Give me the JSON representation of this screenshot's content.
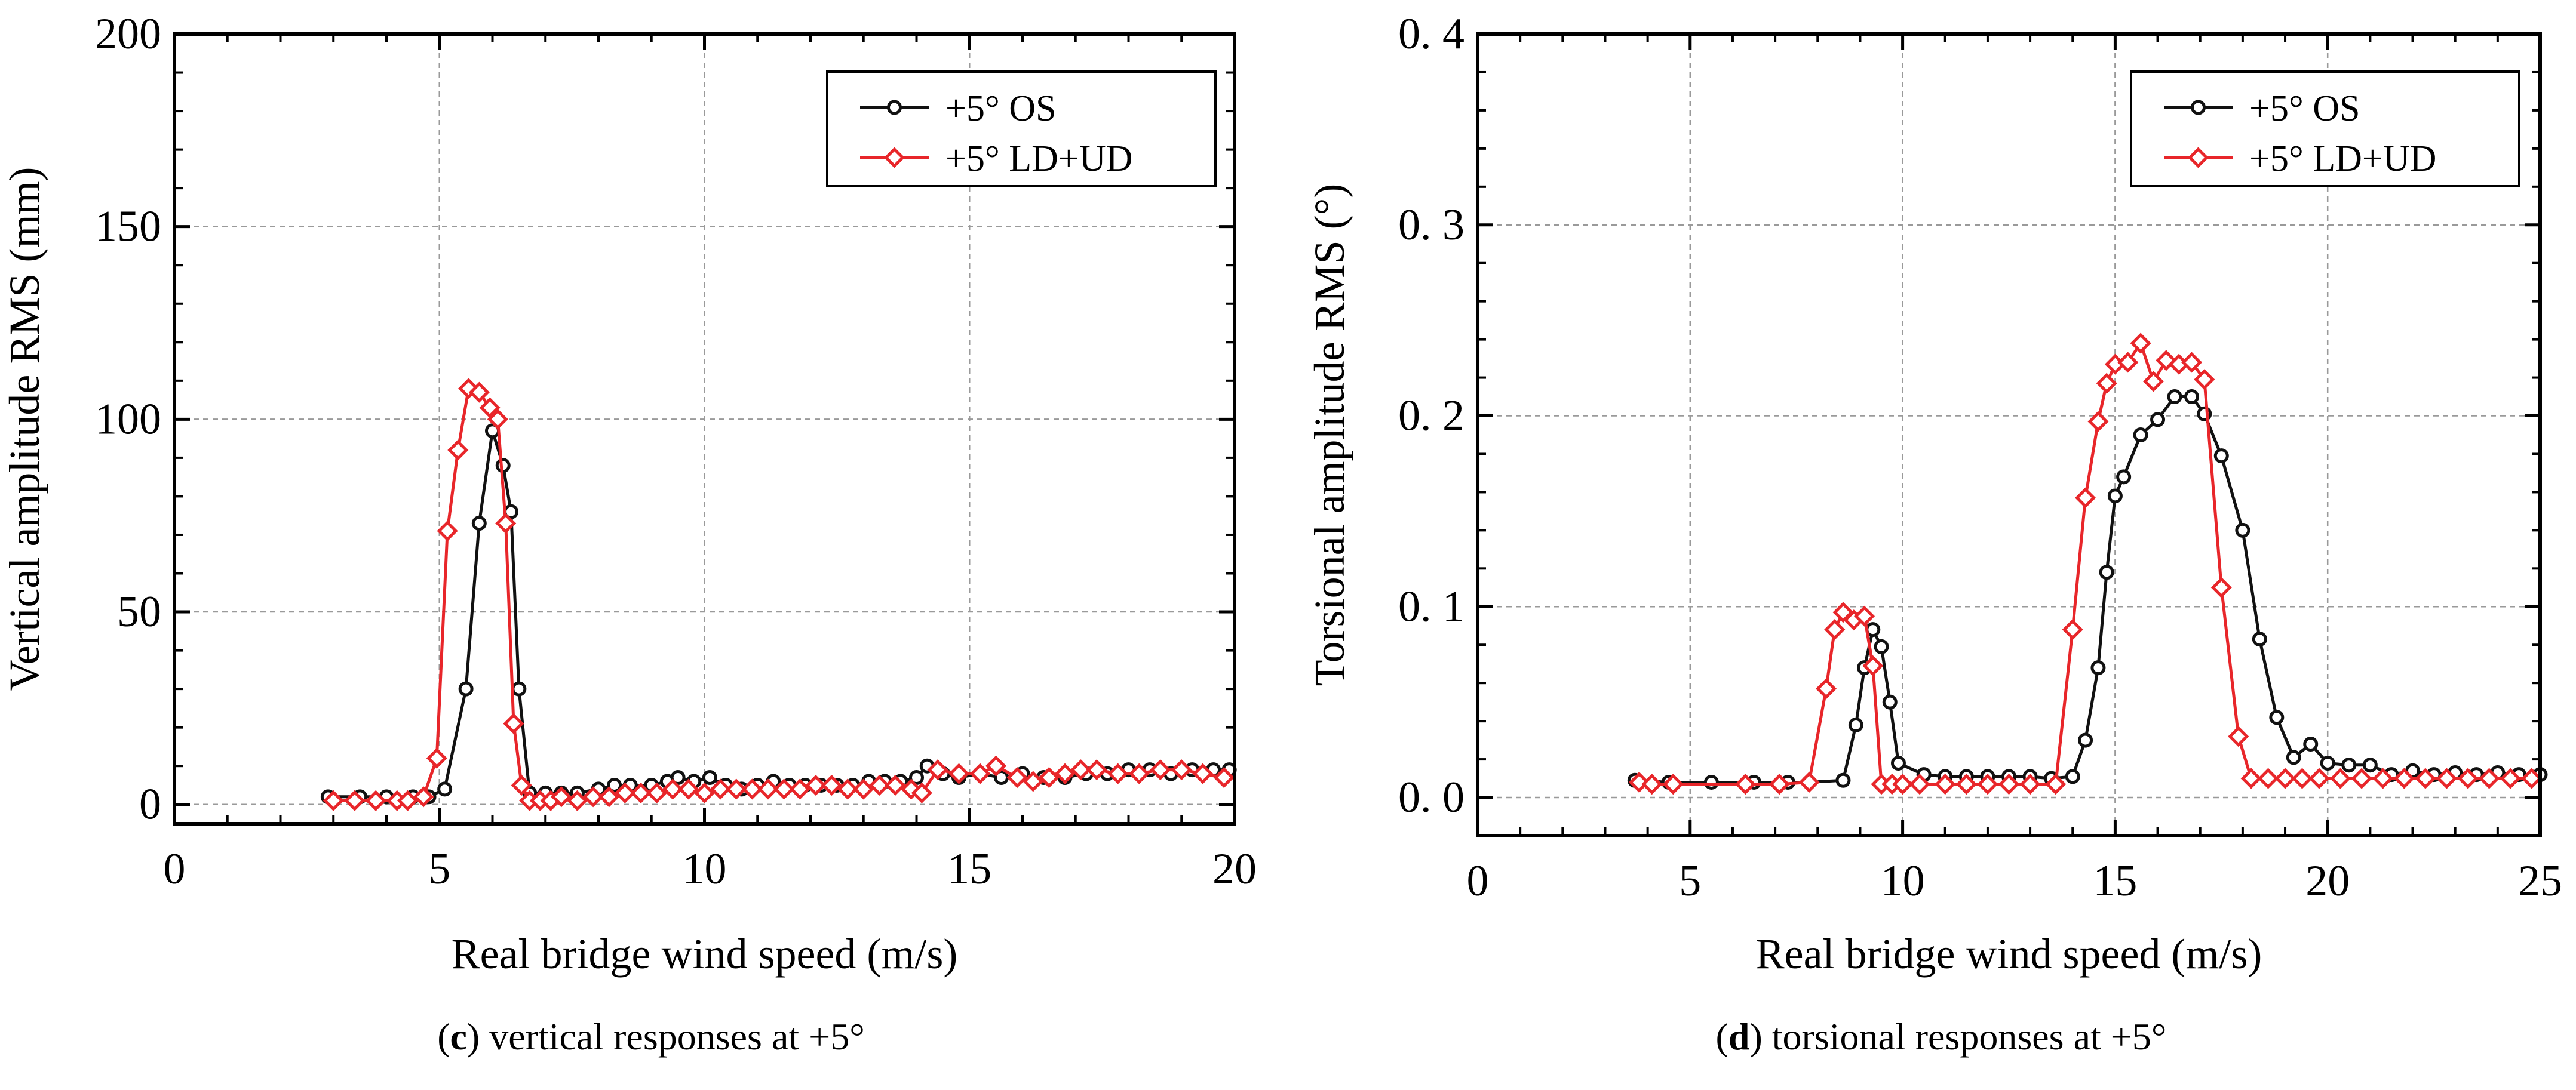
{
  "colors": {
    "series_os": "#111111",
    "series_ld": "#e8262a",
    "grid": "#9a9a9a",
    "axis": "#000000"
  },
  "captions": [
    {
      "letter": "c",
      "text": "vertical responses at +5°"
    },
    {
      "letter": "d",
      "text": "torsional responses at +5°"
    }
  ],
  "chart_data": [
    {
      "type": "line",
      "title": "",
      "xlabel": "Real bridge wind speed (m/s)",
      "ylabel": "Vertical amplitude RMS (mm)",
      "xlim": [
        0,
        20
      ],
      "ylim": [
        -5,
        200
      ],
      "xticks": [
        0,
        5,
        10,
        15,
        20
      ],
      "xtick_labels": [
        "0",
        "5",
        "10",
        "15",
        "20"
      ],
      "yticks": [
        0,
        50,
        100,
        150,
        200
      ],
      "ytick_labels": [
        "0",
        "50",
        "100",
        "150",
        "200"
      ],
      "grid": true,
      "legend": "top-right",
      "series": [
        {
          "name": "+5° OS",
          "marker": "circle",
          "x": [
            2.9,
            3.5,
            4.0,
            4.5,
            4.8,
            5.1,
            5.5,
            5.75,
            6.0,
            6.2,
            6.35,
            6.5,
            6.7,
            7.0,
            7.3,
            7.6,
            8.0,
            8.3,
            8.6,
            9.0,
            9.3,
            9.5,
            9.8,
            10.1,
            10.4,
            10.7,
            11.0,
            11.3,
            11.6,
            11.9,
            12.2,
            12.5,
            12.8,
            13.1,
            13.4,
            13.7,
            14.0,
            14.2,
            14.5,
            14.8,
            15.2,
            15.6,
            16.0,
            16.4,
            16.8,
            17.2,
            17.6,
            18.0,
            18.4,
            18.8,
            19.2,
            19.6,
            19.9
          ],
          "y": [
            2,
            2,
            2,
            2,
            2,
            4,
            30,
            73,
            97,
            88,
            76,
            30,
            3,
            3,
            3,
            3,
            4,
            5,
            5,
            5,
            6,
            7,
            6,
            7,
            5,
            4,
            5,
            6,
            5,
            5,
            5,
            5,
            5,
            6,
            6,
            6,
            7,
            10,
            8,
            7,
            8,
            7,
            8,
            7,
            7,
            8,
            8,
            9,
            9,
            8,
            9,
            9,
            9
          ]
        },
        {
          "name": "+5° LD+UD",
          "marker": "diamond",
          "x": [
            3.0,
            3.4,
            3.8,
            4.2,
            4.4,
            4.7,
            4.95,
            5.15,
            5.35,
            5.55,
            5.75,
            5.95,
            6.1,
            6.25,
            6.4,
            6.55,
            6.7,
            6.9,
            7.1,
            7.3,
            7.6,
            7.9,
            8.2,
            8.5,
            8.8,
            9.1,
            9.4,
            9.7,
            10.0,
            10.3,
            10.6,
            10.9,
            11.2,
            11.5,
            11.8,
            12.1,
            12.4,
            12.7,
            13.0,
            13.3,
            13.6,
            13.9,
            14.1,
            14.4,
            14.8,
            15.2,
            15.5,
            15.9,
            16.2,
            16.5,
            16.8,
            17.1,
            17.4,
            17.8,
            18.2,
            18.6,
            19.0,
            19.4,
            19.8
          ],
          "y": [
            1,
            1,
            1,
            1,
            1,
            2,
            12,
            71,
            92,
            108,
            107,
            103,
            100,
            73,
            21,
            5,
            1,
            1,
            1,
            2,
            1,
            2,
            2,
            3,
            3,
            3,
            4,
            4,
            3,
            4,
            4,
            4,
            4,
            4,
            4,
            5,
            5,
            4,
            4,
            5,
            5,
            4,
            3,
            9,
            8,
            8,
            10,
            7,
            6,
            7,
            8,
            9,
            9,
            8,
            8,
            9,
            9,
            8,
            7
          ]
        }
      ]
    },
    {
      "type": "line",
      "title": "",
      "xlabel": "Real bridge wind speed (m/s)",
      "ylabel": "Torsional amplitude RMS (°)",
      "xlim": [
        0,
        25
      ],
      "ylim": [
        -0.02,
        0.4
      ],
      "xticks": [
        0,
        5,
        10,
        15,
        20,
        25
      ],
      "xtick_labels": [
        "0",
        "5",
        "10",
        "15",
        "20",
        "25"
      ],
      "yticks": [
        0.0,
        0.1,
        0.2,
        0.3,
        0.4
      ],
      "ytick_labels": [
        "0. 0",
        "0. 1",
        "0. 2",
        "0. 3",
        "0. 4"
      ],
      "grid": true,
      "legend": "top-right",
      "series": [
        {
          "name": "+5° OS",
          "marker": "circle",
          "x": [
            3.7,
            4.5,
            5.5,
            6.5,
            7.3,
            7.8,
            8.6,
            8.9,
            9.1,
            9.3,
            9.5,
            9.7,
            9.9,
            10.5,
            11.0,
            11.5,
            12.0,
            12.5,
            13.0,
            13.5,
            14.0,
            14.3,
            14.6,
            14.8,
            15.0,
            15.2,
            15.6,
            16.0,
            16.4,
            16.8,
            17.1,
            17.5,
            18.0,
            18.4,
            18.8,
            19.2,
            19.6,
            20.0,
            20.5,
            21.0,
            21.5,
            22.0,
            22.5,
            23.0,
            23.5,
            24.0,
            24.5,
            25.0
          ],
          "y": [
            0.009,
            0.008,
            0.008,
            0.008,
            0.008,
            0.008,
            0.009,
            0.038,
            0.068,
            0.088,
            0.079,
            0.05,
            0.018,
            0.012,
            0.011,
            0.011,
            0.011,
            0.011,
            0.011,
            0.01,
            0.011,
            0.03,
            0.068,
            0.118,
            0.158,
            0.168,
            0.19,
            0.198,
            0.21,
            0.21,
            0.201,
            0.179,
            0.14,
            0.083,
            0.042,
            0.021,
            0.028,
            0.018,
            0.017,
            0.017,
            0.012,
            0.014,
            0.012,
            0.013,
            0.012,
            0.013,
            0.012,
            0.012
          ]
        },
        {
          "name": "+5° LD+UD",
          "marker": "diamond",
          "x": [
            3.8,
            4.1,
            4.6,
            6.3,
            7.1,
            7.8,
            8.2,
            8.4,
            8.6,
            8.85,
            9.1,
            9.3,
            9.5,
            9.75,
            10.0,
            10.4,
            11.0,
            11.5,
            12.0,
            12.5,
            13.0,
            13.6,
            14.0,
            14.3,
            14.6,
            14.8,
            15.0,
            15.3,
            15.6,
            15.9,
            16.2,
            16.5,
            16.8,
            17.1,
            17.5,
            17.9,
            18.2,
            18.6,
            19.0,
            19.4,
            19.8,
            20.3,
            20.8,
            21.3,
            21.8,
            22.3,
            22.8,
            23.3,
            23.8,
            24.3,
            24.8
          ],
          "y": [
            0.008,
            0.007,
            0.007,
            0.007,
            0.007,
            0.008,
            0.057,
            0.088,
            0.097,
            0.093,
            0.095,
            0.069,
            0.007,
            0.007,
            0.007,
            0.007,
            0.007,
            0.007,
            0.007,
            0.007,
            0.007,
            0.007,
            0.088,
            0.157,
            0.197,
            0.217,
            0.227,
            0.228,
            0.238,
            0.218,
            0.229,
            0.227,
            0.228,
            0.219,
            0.11,
            0.032,
            0.01,
            0.01,
            0.01,
            0.01,
            0.01,
            0.01,
            0.01,
            0.01,
            0.01,
            0.01,
            0.01,
            0.01,
            0.01,
            0.01,
            0.01
          ]
        }
      ]
    }
  ]
}
